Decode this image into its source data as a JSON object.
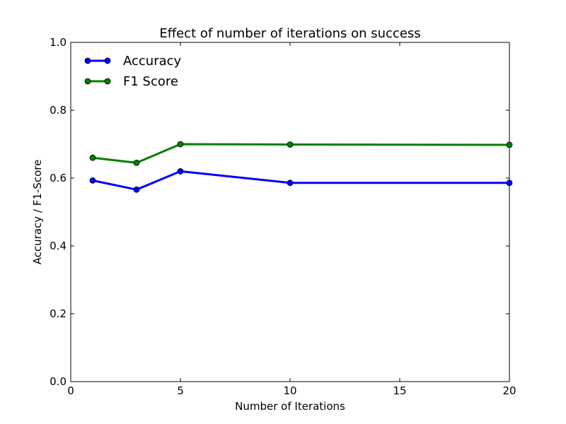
{
  "chart_data": {
    "type": "line",
    "title": "Effect of number of iterations on success",
    "xlabel": "Number of Iterations",
    "ylabel": "Accuracy / F1-Score",
    "xlim": [
      0,
      20
    ],
    "ylim": [
      0.0,
      1.0
    ],
    "xticks": [
      0,
      5,
      10,
      15,
      20
    ],
    "xtick_labels": [
      "0",
      "5",
      "10",
      "15",
      "20"
    ],
    "yticks": [
      0.0,
      0.2,
      0.4,
      0.6,
      0.8,
      1.0
    ],
    "ytick_labels": [
      "0.0",
      "0.2",
      "0.4",
      "0.6",
      "0.8",
      "1.0"
    ],
    "grid": false,
    "legend_position": "top-left",
    "x": [
      1,
      3,
      5,
      10,
      20
    ],
    "series": [
      {
        "name": "Accuracy",
        "color": "#0000ff",
        "values": [
          0.593,
          0.566,
          0.62,
          0.586,
          0.586
        ]
      },
      {
        "name": "F1 Score",
        "color": "#008000",
        "values": [
          0.66,
          0.645,
          0.7,
          0.699,
          0.698
        ]
      }
    ]
  }
}
